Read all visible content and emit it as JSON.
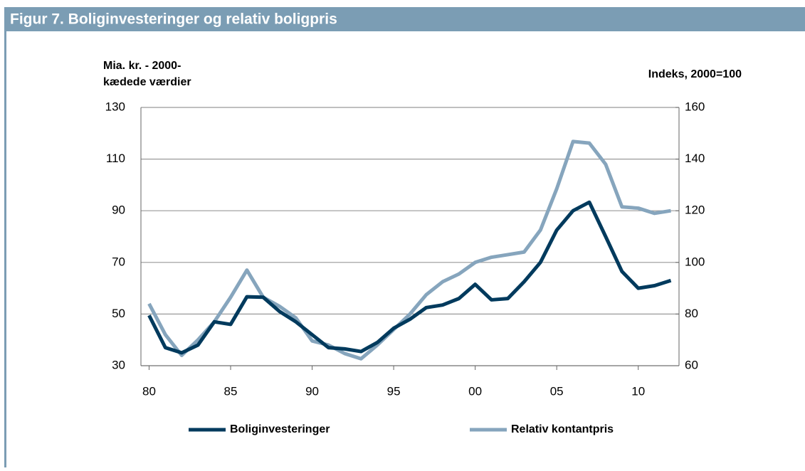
{
  "chart_data": {
    "type": "line",
    "title": "Figur 7. Boliginvesteringer og relativ boligpris",
    "ylabel": [
      "Mia. kr. - 2000-",
      "kædede værdier"
    ],
    "y2label": "Indeks, 2000=100",
    "x": [
      1980,
      1981,
      1982,
      1983,
      1984,
      1985,
      1986,
      1987,
      1988,
      1989,
      1990,
      1991,
      1992,
      1993,
      1994,
      1995,
      1996,
      1997,
      1998,
      1999,
      2000,
      2001,
      2002,
      2003,
      2004,
      2005,
      2006,
      2007,
      2008,
      2009,
      2010,
      2011,
      2012
    ],
    "xlim": [
      1979.5,
      2012.5
    ],
    "xticks": [
      {
        "value": 1980,
        "label": "80"
      },
      {
        "value": 1985,
        "label": "85"
      },
      {
        "value": 1990,
        "label": "90"
      },
      {
        "value": 1995,
        "label": "95"
      },
      {
        "value": 2000,
        "label": "00"
      },
      {
        "value": 2005,
        "label": "05"
      },
      {
        "value": 2010,
        "label": "10"
      }
    ],
    "ylim": [
      30,
      130
    ],
    "yticks": [
      30,
      50,
      70,
      90,
      110,
      130
    ],
    "y2lim": [
      60,
      160
    ],
    "y2ticks": [
      60,
      80,
      100,
      120,
      140,
      160
    ],
    "grid": true,
    "series": [
      {
        "name": "Boliginvesteringer",
        "color": "#003a5d",
        "values": [
          49.5,
          37,
          35,
          38,
          47,
          46,
          56.7,
          56.5,
          51,
          47,
          42,
          37,
          36.5,
          35.5,
          39,
          44.5,
          48,
          52.5,
          53.5,
          56,
          61.5,
          55.5,
          56,
          62.5,
          70,
          82.5,
          90,
          93.3,
          80,
          66.5,
          60,
          61,
          63
        ]
      },
      {
        "name": "Relativ kontantpris",
        "color": "#86a5bd",
        "axis": "y2",
        "values": [
          84,
          72,
          64,
          70,
          77,
          86.5,
          97,
          86.5,
          83,
          78.5,
          69.6,
          68,
          64.7,
          62.7,
          68,
          74,
          80,
          87.5,
          92.5,
          95.5,
          100,
          102,
          103,
          104,
          112.5,
          128.5,
          146.8,
          146.2,
          138,
          121.5,
          121,
          119,
          120
        ]
      }
    ]
  }
}
